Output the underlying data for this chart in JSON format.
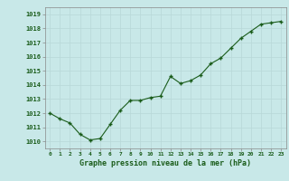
{
  "x": [
    0,
    1,
    2,
    3,
    4,
    5,
    6,
    7,
    8,
    9,
    10,
    11,
    12,
    13,
    14,
    15,
    16,
    17,
    18,
    19,
    20,
    21,
    22,
    23
  ],
  "y": [
    1012.0,
    1011.6,
    1011.3,
    1010.5,
    1010.1,
    1010.2,
    1011.2,
    1012.2,
    1012.9,
    1012.9,
    1013.1,
    1013.2,
    1014.6,
    1014.1,
    1014.3,
    1014.7,
    1015.5,
    1015.9,
    1016.6,
    1017.3,
    1017.8,
    1018.3,
    1018.4,
    1018.5
  ],
  "line_color": "#1a5c1a",
  "marker_color": "#1a5c1a",
  "bg_color": "#c8e8e8",
  "grid_color": "#b8d8d8",
  "xlabel": "Graphe pression niveau de la mer (hPa)",
  "xlabel_color": "#1a5c1a",
  "tick_color": "#1a5c1a",
  "ylim_min": 1009.5,
  "ylim_max": 1019.5,
  "yticks": [
    1010,
    1011,
    1012,
    1013,
    1014,
    1015,
    1016,
    1017,
    1018,
    1019
  ],
  "spine_color": "#888888"
}
